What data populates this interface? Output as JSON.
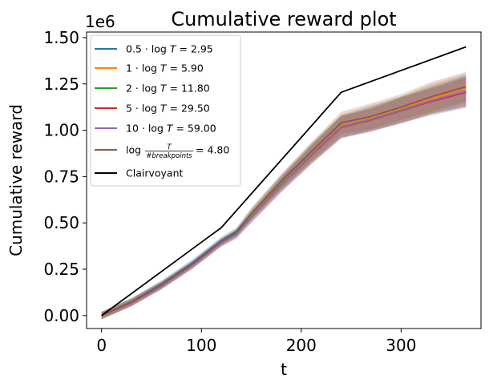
{
  "chart_data": {
    "type": "line",
    "title": "Cumulative reward plot",
    "xlabel": "t",
    "ylabel": "Cumulative reward",
    "y_offset_label": "1e6",
    "xlim": [
      -15,
      380
    ],
    "ylim": [
      -0.07,
      1.53
    ],
    "x_ticks": [
      0,
      100,
      200,
      300
    ],
    "x_tick_labels": [
      "0",
      "100",
      "200",
      "300"
    ],
    "y_ticks": [
      0.0,
      0.25,
      0.5,
      0.75,
      1.0,
      1.25,
      1.5
    ],
    "y_tick_labels": [
      "0.00",
      "0.25",
      "0.50",
      "0.75",
      "1.00",
      "1.25",
      "1.50"
    ],
    "legend_position": "upper-left",
    "series": [
      {
        "name": "0.5 · log T = 2.95",
        "color": "#1f77b4",
        "x": [
          0,
          30,
          60,
          90,
          120,
          135,
          150,
          180,
          210,
          240,
          270,
          300,
          330,
          365
        ],
        "y": [
          0,
          0.075,
          0.17,
          0.28,
          0.405,
          0.455,
          0.55,
          0.72,
          0.88,
          1.02,
          1.06,
          1.11,
          1.16,
          1.21
        ],
        "band": [
          0.02,
          0.02,
          0.02,
          0.02,
          0.02,
          0.02,
          0.03,
          0.04,
          0.05,
          0.06,
          0.07,
          0.07,
          0.08,
          0.09
        ]
      },
      {
        "name": "1 · log T = 5.90",
        "color": "#ff7f0e",
        "x": [
          0,
          30,
          60,
          90,
          120,
          135,
          150,
          180,
          210,
          240,
          270,
          300,
          330,
          365
        ],
        "y": [
          0,
          0.072,
          0.165,
          0.272,
          0.398,
          0.445,
          0.54,
          0.715,
          0.875,
          1.025,
          1.065,
          1.115,
          1.17,
          1.225
        ],
        "band": [
          0.02,
          0.02,
          0.02,
          0.02,
          0.02,
          0.02,
          0.03,
          0.04,
          0.05,
          0.06,
          0.07,
          0.07,
          0.08,
          0.08
        ]
      },
      {
        "name": "2 · log T = 11.80",
        "color": "#2ca02c",
        "x": [
          0,
          30,
          60,
          90,
          120,
          135,
          150,
          180,
          210,
          240,
          270,
          300,
          330,
          365
        ],
        "y": [
          0,
          0.071,
          0.163,
          0.27,
          0.395,
          0.44,
          0.535,
          0.71,
          0.87,
          1.02,
          1.06,
          1.11,
          1.16,
          1.21
        ],
        "band": [
          0.02,
          0.02,
          0.02,
          0.02,
          0.02,
          0.02,
          0.03,
          0.04,
          0.05,
          0.06,
          0.06,
          0.07,
          0.07,
          0.08
        ]
      },
      {
        "name": "5 · log T = 29.50",
        "color": "#d62728",
        "x": [
          0,
          30,
          60,
          90,
          120,
          135,
          150,
          180,
          210,
          240,
          270,
          300,
          330,
          365
        ],
        "y": [
          0,
          0.07,
          0.16,
          0.268,
          0.392,
          0.435,
          0.53,
          0.705,
          0.865,
          1.015,
          1.055,
          1.105,
          1.155,
          1.205
        ],
        "band": [
          0.02,
          0.02,
          0.02,
          0.02,
          0.02,
          0.02,
          0.03,
          0.04,
          0.05,
          0.06,
          0.06,
          0.07,
          0.07,
          0.08
        ]
      },
      {
        "name": "10 · log T = 59.00",
        "color": "#9467bd",
        "x": [
          0,
          30,
          60,
          90,
          120,
          135,
          150,
          180,
          210,
          240,
          270,
          300,
          330,
          365
        ],
        "y": [
          0,
          0.07,
          0.16,
          0.268,
          0.392,
          0.435,
          0.53,
          0.705,
          0.868,
          1.018,
          1.058,
          1.108,
          1.16,
          1.21
        ],
        "band": [
          0.02,
          0.02,
          0.02,
          0.02,
          0.02,
          0.02,
          0.03,
          0.04,
          0.05,
          0.06,
          0.06,
          0.07,
          0.07,
          0.08
        ]
      },
      {
        "name": "log T/#breakpoints = 4.80",
        "color": "#8c564b",
        "x": [
          0,
          30,
          60,
          90,
          120,
          135,
          150,
          180,
          210,
          240,
          270,
          300,
          330,
          365
        ],
        "y": [
          0,
          0.072,
          0.165,
          0.273,
          0.4,
          0.45,
          0.55,
          0.725,
          0.885,
          1.04,
          1.075,
          1.125,
          1.18,
          1.235
        ],
        "band": [
          0.02,
          0.02,
          0.02,
          0.02,
          0.02,
          0.02,
          0.03,
          0.04,
          0.05,
          0.06,
          0.07,
          0.07,
          0.08,
          0.08
        ]
      },
      {
        "name": "Clairvoyant",
        "color": "#000000",
        "x": [
          0,
          120,
          240,
          365
        ],
        "y": [
          0,
          0.475,
          1.205,
          1.45
        ],
        "band": null
      }
    ]
  },
  "legend": [
    {
      "key": "s0",
      "prefix": "0.5 · log ",
      "var": "T",
      "suffix": " = 2.95"
    },
    {
      "key": "s1",
      "prefix": "1 · log ",
      "var": "T",
      "suffix": " = 5.90"
    },
    {
      "key": "s2",
      "prefix": "2 · log ",
      "var": "T",
      "suffix": " = 11.80"
    },
    {
      "key": "s3",
      "prefix": "5 · log ",
      "var": "T",
      "suffix": " = 29.50"
    },
    {
      "key": "s4",
      "prefix": "10 · log ",
      "var": "T",
      "suffix": " = 59.00"
    },
    {
      "key": "s5",
      "prefix": "log ",
      "frac_num": "T",
      "frac_den": "#breakpoints",
      "suffix": " = 4.80"
    },
    {
      "key": "s6",
      "prefix": "Clairvoyant",
      "var": "",
      "suffix": ""
    }
  ]
}
